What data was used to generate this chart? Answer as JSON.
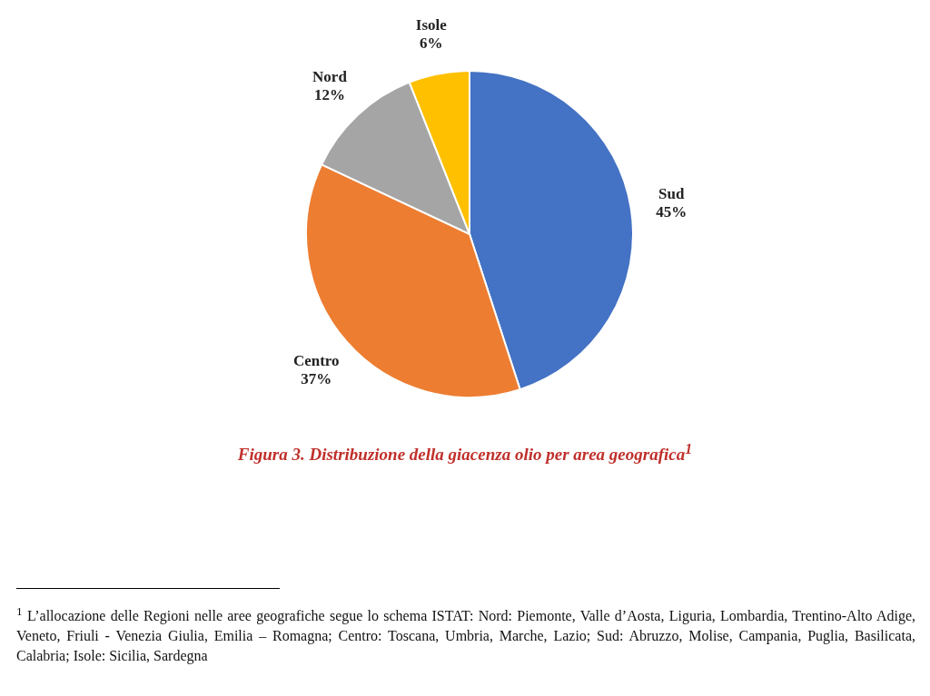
{
  "chart_data": {
    "type": "pie",
    "title": "Figura 3. Distribuzione della giacenza olio per area geografica$^{1}$",
    "categories": [
      "Sud",
      "Centro",
      "Nord",
      "Isole"
    ],
    "values": [
      45,
      37,
      12,
      6
    ],
    "value_labels": [
      "45%",
      "37%",
      "12%",
      "6%"
    ],
    "colors": [
      "#4472c4",
      "#ed7d31",
      "#a5a5a5",
      "#ffc000"
    ],
    "legend": false,
    "annotations": [
      "$^{1}$ L’allocazione delle Regioni nelle aree geografiche segue lo schema ISTAT: Nord: Piemonte, Valle d’Aosta, Liguria, Lombardia, Trentino-Alto Adige, Veneto, Friuli - Venezia Giulia, Emilia – Romagna; Centro: Toscana, Umbria, Marche, Lazio; Sud: Abruzzo, Molise, Campania, Puglia, Basilicata, Calabria; Isole: Sicilia, Sardegna"
    ]
  }
}
